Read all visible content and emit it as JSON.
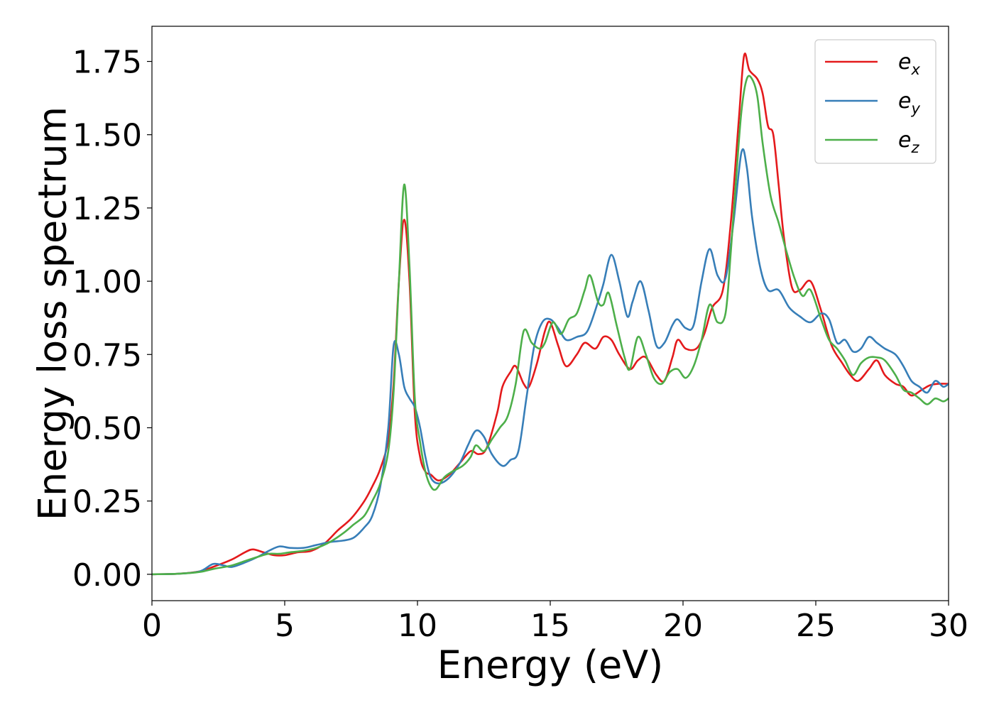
{
  "chart_data": {
    "type": "line",
    "title": "",
    "xlabel": "Energy (eV)",
    "ylabel": "Energy loss spectrum",
    "xlim": [
      0,
      30
    ],
    "ylim": [
      -0.09,
      1.87
    ],
    "xticks": [
      0,
      5,
      10,
      15,
      20,
      25,
      30
    ],
    "yticks": [
      0.0,
      0.25,
      0.5,
      0.75,
      1.0,
      1.25,
      1.5,
      1.75
    ],
    "xtick_labels": [
      "0",
      "5",
      "10",
      "15",
      "20",
      "25",
      "30"
    ],
    "ytick_labels": [
      "0.00",
      "0.25",
      "0.50",
      "0.75",
      "1.00",
      "1.25",
      "1.50",
      "1.75"
    ],
    "grid": false,
    "legend_position": "top-right",
    "series": [
      {
        "name": "e_x",
        "legend_base": "e",
        "legend_sub": "x",
        "color": "#e41a1c",
        "x": [
          0,
          1,
          1.8,
          2.3,
          3,
          3.5,
          3.8,
          4.2,
          4.6,
          5,
          5.5,
          6,
          6.5,
          7,
          7.5,
          8,
          8.3,
          8.6,
          8.9,
          9.1,
          9.3,
          9.5,
          9.7,
          9.9,
          10.1,
          10.3,
          10.5,
          10.8,
          11.2,
          11.6,
          12,
          12.3,
          12.6,
          13,
          13.2,
          13.5,
          13.7,
          14,
          14.2,
          14.5,
          14.8,
          15,
          15.3,
          15.6,
          16,
          16.3,
          16.7,
          17,
          17.3,
          17.6,
          18,
          18.3,
          18.6,
          19,
          19.3,
          19.6,
          19.8,
          20.1,
          20.5,
          20.8,
          21.1,
          21.5,
          21.8,
          22.1,
          22.3,
          22.5,
          22.8,
          23,
          23.2,
          23.4,
          23.6,
          23.8,
          24.1,
          24.4,
          24.8,
          25.2,
          25.6,
          26,
          26.3,
          26.6,
          27,
          27.3,
          27.6,
          28,
          28.3,
          28.6,
          29,
          29.3,
          29.6,
          30
        ],
        "y": [
          0,
          0.002,
          0.01,
          0.025,
          0.05,
          0.075,
          0.085,
          0.075,
          0.065,
          0.065,
          0.075,
          0.08,
          0.105,
          0.15,
          0.19,
          0.25,
          0.3,
          0.36,
          0.46,
          0.65,
          1.0,
          1.21,
          1.0,
          0.55,
          0.4,
          0.35,
          0.34,
          0.32,
          0.34,
          0.38,
          0.42,
          0.41,
          0.43,
          0.55,
          0.64,
          0.69,
          0.71,
          0.65,
          0.64,
          0.72,
          0.83,
          0.86,
          0.78,
          0.71,
          0.75,
          0.79,
          0.77,
          0.81,
          0.8,
          0.75,
          0.7,
          0.73,
          0.74,
          0.68,
          0.66,
          0.74,
          0.8,
          0.77,
          0.77,
          0.82,
          0.91,
          0.97,
          1.2,
          1.55,
          1.77,
          1.72,
          1.69,
          1.64,
          1.53,
          1.5,
          1.33,
          1.15,
          0.98,
          0.97,
          1.0,
          0.9,
          0.78,
          0.72,
          0.68,
          0.66,
          0.7,
          0.73,
          0.68,
          0.65,
          0.64,
          0.61,
          0.63,
          0.645,
          0.65,
          0.65
        ]
      },
      {
        "name": "e_y",
        "legend_base": "e",
        "legend_sub": "y",
        "color": "#377eb8",
        "x": [
          0,
          1,
          1.8,
          2.3,
          2.7,
          3,
          3.5,
          4,
          4.4,
          4.8,
          5.2,
          5.7,
          6.2,
          6.7,
          7.2,
          7.6,
          8,
          8.3,
          8.6,
          8.9,
          9.1,
          9.3,
          9.5,
          9.7,
          9.9,
          10.1,
          10.3,
          10.5,
          10.8,
          11.2,
          11.6,
          11.9,
          12.2,
          12.5,
          12.8,
          13.2,
          13.5,
          13.8,
          14.1,
          14.4,
          14.7,
          15,
          15.3,
          15.6,
          16,
          16.4,
          16.8,
          17,
          17.3,
          17.6,
          17.9,
          18.1,
          18.4,
          18.7,
          19,
          19.3,
          19.6,
          19.8,
          20.1,
          20.4,
          20.7,
          21,
          21.3,
          21.6,
          21.9,
          22.2,
          22.4,
          22.6,
          22.9,
          23.2,
          23.6,
          24,
          24.4,
          24.8,
          25.2,
          25.5,
          25.8,
          26.1,
          26.4,
          26.7,
          27,
          27.3,
          27.6,
          28,
          28.3,
          28.6,
          28.9,
          29.2,
          29.5,
          29.8,
          30
        ],
        "y": [
          0,
          0.002,
          0.01,
          0.035,
          0.03,
          0.025,
          0.04,
          0.06,
          0.08,
          0.095,
          0.09,
          0.09,
          0.1,
          0.11,
          0.115,
          0.125,
          0.16,
          0.2,
          0.3,
          0.5,
          0.78,
          0.75,
          0.64,
          0.6,
          0.57,
          0.5,
          0.4,
          0.33,
          0.31,
          0.33,
          0.38,
          0.44,
          0.49,
          0.47,
          0.41,
          0.37,
          0.39,
          0.42,
          0.6,
          0.78,
          0.86,
          0.87,
          0.84,
          0.8,
          0.81,
          0.83,
          0.93,
          0.99,
          1.09,
          1.0,
          0.88,
          0.93,
          1.0,
          0.9,
          0.78,
          0.79,
          0.85,
          0.87,
          0.84,
          0.85,
          1.0,
          1.11,
          1.02,
          1.01,
          1.2,
          1.44,
          1.39,
          1.22,
          1.05,
          0.97,
          0.97,
          0.91,
          0.88,
          0.86,
          0.89,
          0.87,
          0.79,
          0.8,
          0.76,
          0.77,
          0.81,
          0.79,
          0.77,
          0.75,
          0.71,
          0.66,
          0.64,
          0.62,
          0.66,
          0.64,
          0.65
        ]
      },
      {
        "name": "e_z",
        "legend_base": "e",
        "legend_sub": "z",
        "color": "#4daf4a",
        "x": [
          0,
          1,
          1.8,
          2.3,
          3,
          3.5,
          4,
          4.4,
          4.8,
          5.2,
          5.7,
          6.2,
          6.7,
          7.2,
          7.6,
          8,
          8.3,
          8.6,
          8.9,
          9.1,
          9.3,
          9.5,
          9.7,
          9.9,
          10.1,
          10.3,
          10.5,
          10.7,
          11,
          11.3,
          11.7,
          12,
          12.2,
          12.5,
          12.8,
          13.1,
          13.4,
          13.7,
          14,
          14.3,
          14.6,
          14.8,
          15.1,
          15.4,
          15.7,
          16,
          16.3,
          16.5,
          16.8,
          17,
          17.2,
          17.5,
          17.8,
          18,
          18.3,
          18.6,
          18.9,
          19.2,
          19.5,
          19.8,
          20.1,
          20.4,
          20.7,
          21,
          21.3,
          21.6,
          21.8,
          22,
          22.2,
          22.4,
          22.6,
          22.8,
          23,
          23.3,
          23.6,
          23.9,
          24.2,
          24.5,
          24.8,
          25.2,
          25.5,
          25.8,
          26.1,
          26.4,
          26.7,
          27,
          27.3,
          27.6,
          28,
          28.3,
          28.6,
          28.9,
          29.2,
          29.5,
          29.8,
          30
        ],
        "y": [
          0,
          0.002,
          0.008,
          0.018,
          0.03,
          0.045,
          0.06,
          0.07,
          0.07,
          0.075,
          0.08,
          0.09,
          0.11,
          0.14,
          0.17,
          0.2,
          0.25,
          0.31,
          0.42,
          0.62,
          1.0,
          1.33,
          1.05,
          0.6,
          0.45,
          0.35,
          0.3,
          0.29,
          0.33,
          0.35,
          0.37,
          0.4,
          0.44,
          0.42,
          0.46,
          0.5,
          0.54,
          0.65,
          0.83,
          0.79,
          0.77,
          0.79,
          0.86,
          0.82,
          0.87,
          0.89,
          0.97,
          1.02,
          0.93,
          0.92,
          0.96,
          0.85,
          0.74,
          0.7,
          0.81,
          0.75,
          0.67,
          0.65,
          0.69,
          0.7,
          0.67,
          0.71,
          0.8,
          0.92,
          0.86,
          0.89,
          1.1,
          1.35,
          1.58,
          1.69,
          1.69,
          1.63,
          1.47,
          1.29,
          1.2,
          1.1,
          1.01,
          0.95,
          0.97,
          0.87,
          0.8,
          0.77,
          0.73,
          0.68,
          0.72,
          0.74,
          0.74,
          0.73,
          0.68,
          0.63,
          0.62,
          0.6,
          0.58,
          0.6,
          0.59,
          0.6
        ]
      }
    ]
  }
}
